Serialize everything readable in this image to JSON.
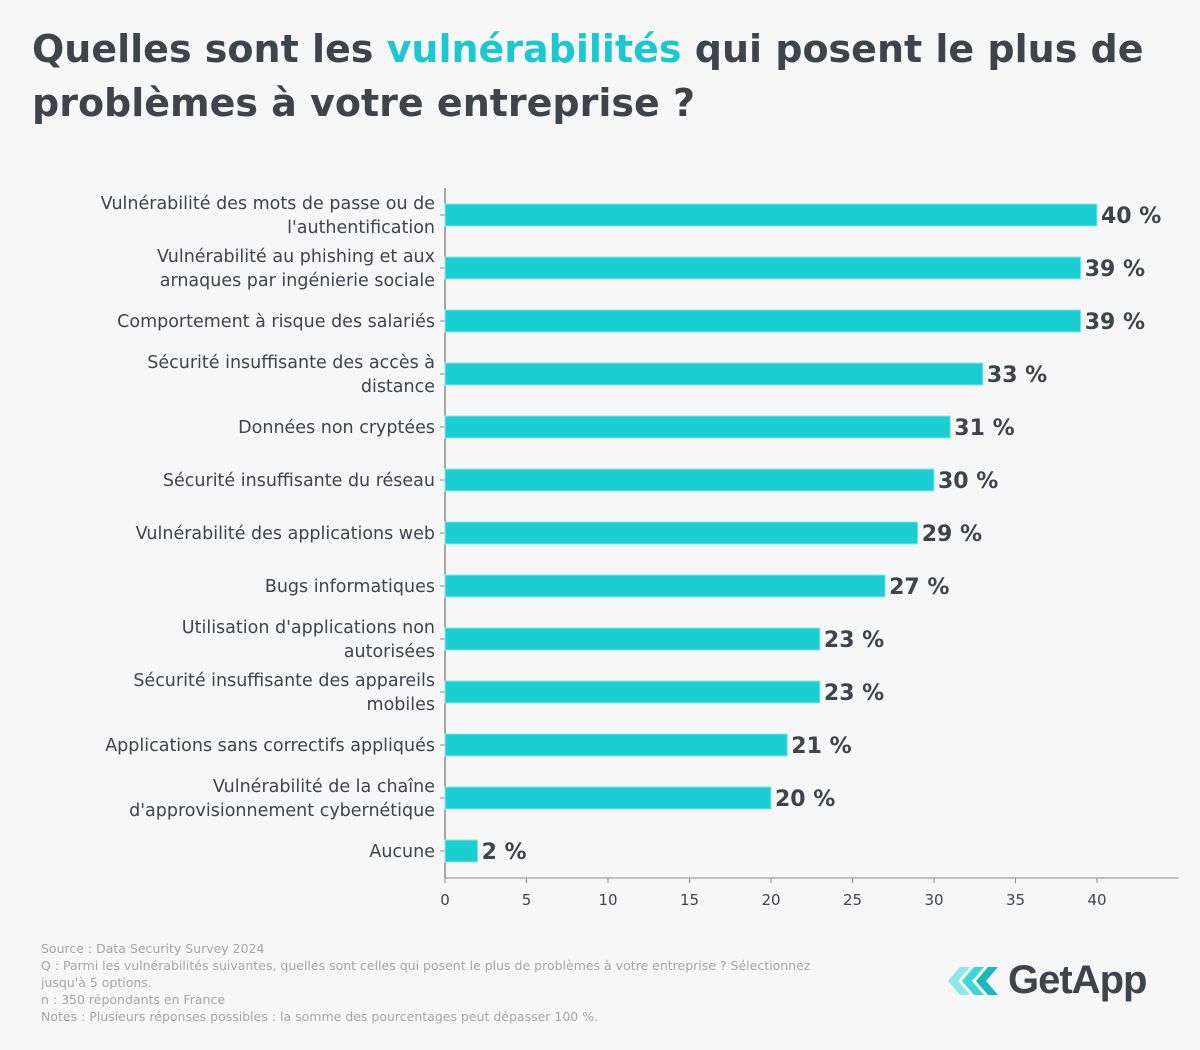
{
  "title": {
    "before": "Quelles sont les ",
    "highlight": "vulnérabilités",
    "after": " qui posent le plus de problèmes à votre entreprise ?"
  },
  "colors": {
    "bar": "#19cfd1",
    "highlight": "#1bc8cf",
    "text": "#3f444b",
    "axis": "#888888"
  },
  "chart_data": {
    "type": "bar",
    "orientation": "horizontal",
    "categories": [
      [
        "Vulnérabilité des mots de passe ou de",
        "l'authentification"
      ],
      [
        "Vulnérabilité au phishing et aux",
        "arnaques par ingénierie sociale"
      ],
      [
        "Comportement à risque des salariés"
      ],
      [
        "Sécurité insuffisante des accès à",
        "distance"
      ],
      [
        "Données non cryptées"
      ],
      [
        "Sécurité insuffisante du réseau"
      ],
      [
        "Vulnérabilité des applications web"
      ],
      [
        "Bugs informatiques"
      ],
      [
        "Utilisation d'applications non",
        "autorisées"
      ],
      [
        "Sécurité insuffisante des appareils",
        "mobiles"
      ],
      [
        "Applications sans correctifs appliqués"
      ],
      [
        "Vulnérabilité de la chaîne",
        "d'approvisionnement cybernétique"
      ],
      [
        "Aucune"
      ]
    ],
    "values": [
      40,
      39,
      39,
      33,
      31,
      30,
      29,
      27,
      23,
      23,
      21,
      20,
      2
    ],
    "data_labels": [
      "40 %",
      "39 %",
      "39 %",
      "33 %",
      "31 %",
      "30 %",
      "29 %",
      "27 %",
      "23 %",
      "23 %",
      "21 %",
      "20 %",
      "2 %"
    ],
    "xticks": [
      0,
      5,
      10,
      15,
      20,
      25,
      30,
      35,
      40
    ],
    "xlim": [
      0,
      45
    ],
    "grid": false
  },
  "footer": [
    "Source :  Data Security Survey 2024",
    "Q : Parmi les vulnérabilités suivantes, quelles sont celles qui posent le plus de problèmes à votre entreprise ? Sélectionnez jusqu'à 5 options.",
    "n : 350 répondants en France",
    "Notes : Plusieurs réponses possibles : la somme des pourcentages peut dépasser 100 %."
  ],
  "logo": {
    "text": "GetApp"
  }
}
